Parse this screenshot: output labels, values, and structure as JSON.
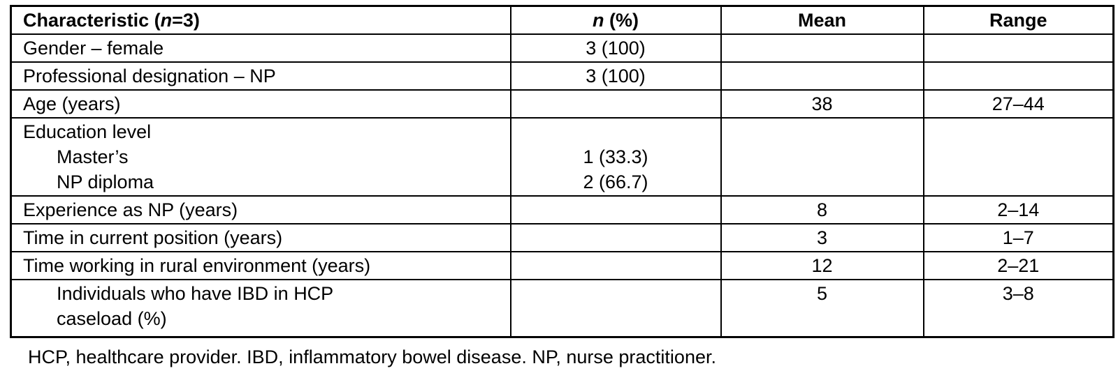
{
  "table": {
    "header": {
      "characteristic_pre": "Characteristic (",
      "characteristic_n": "n",
      "characteristic_post": "=3)",
      "n_percent_n": "n",
      "n_percent_post": " (%)",
      "mean": "Mean",
      "range": "Range"
    },
    "rows": {
      "gender": {
        "label": "Gender – female",
        "n": "3 (100)",
        "mean": "",
        "range": ""
      },
      "professional": {
        "label": "Professional designation – NP",
        "n": "3 (100)",
        "mean": "",
        "range": ""
      },
      "age": {
        "label": "Age (years)",
        "n": "",
        "mean": "38",
        "range": "27–44"
      },
      "education": {
        "label": "Education level",
        "items": {
          "masters": {
            "label": "Master’s",
            "n": "1 (33.3)"
          },
          "np_diploma": {
            "label": "NP diploma",
            "n": "2 (66.7)"
          }
        },
        "mean": "",
        "range": ""
      },
      "experience": {
        "label": "Experience as NP (years)",
        "n": "",
        "mean": "8",
        "range": "2–14"
      },
      "time_position": {
        "label": "Time in current position (years)",
        "n": "",
        "mean": "3",
        "range": "1–7"
      },
      "time_rural": {
        "label": "Time working in rural environment (years)",
        "n": "",
        "mean": "12",
        "range": "2–21"
      },
      "ibd_caseload": {
        "label_line1": "Individuals who have IBD in HCP",
        "label_line2": "caseload (%)",
        "n": "",
        "mean": "5",
        "range": "3–8"
      }
    },
    "footnote": "HCP, healthcare provider. IBD, inflammatory bowel disease. NP, nurse practitioner."
  }
}
